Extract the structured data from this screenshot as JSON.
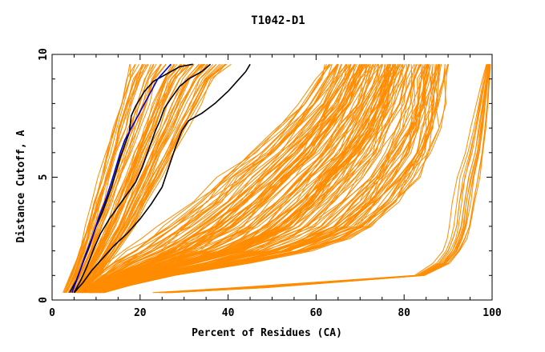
{
  "chart_data": {
    "type": "line",
    "title": "T1042-D1",
    "xlabel": "Percent of Residues (CA)",
    "ylabel": "Distance Cutoff, A",
    "xlim": [
      0,
      100
    ],
    "ylim": [
      0,
      10
    ],
    "x_ticks": [
      "0",
      "20",
      "40",
      "60",
      "80",
      "100"
    ],
    "y_ticks": [
      "0",
      "5",
      "10"
    ],
    "grid": false,
    "legend": "none",
    "colors": {
      "orange": "#ff8c00",
      "black": "#000000",
      "blue": "#0000cd",
      "frame": "#000000"
    },
    "orange_bundles": [
      {
        "name": "steep",
        "count": 65,
        "y": [
          0.3,
          1,
          2,
          3,
          4,
          5,
          6,
          7,
          8,
          9,
          9.6
        ],
        "x_low": [
          2.5,
          4,
          6,
          7.5,
          9,
          10.5,
          12,
          13.5,
          15,
          16.5,
          17.5
        ],
        "x_high": [
          7,
          11,
          15,
          19,
          22,
          25,
          28,
          31,
          34,
          37,
          41
        ]
      },
      {
        "name": "middle",
        "count": 150,
        "y": [
          0.3,
          0.6,
          1,
          1.5,
          2,
          2.5,
          3,
          4,
          5,
          6,
          7,
          8,
          9,
          9.6
        ],
        "x_low": [
          5,
          8,
          10,
          13,
          17,
          21,
          25,
          32,
          38,
          45,
          51,
          56,
          60,
          62
        ],
        "x_high": [
          12,
          18,
          28,
          45,
          60,
          68,
          74,
          80,
          84,
          87,
          88.5,
          89.5,
          90,
          90.5
        ]
      },
      {
        "name": "right",
        "count": 15,
        "y": [
          0.3,
          0.5,
          1,
          1.5,
          2,
          2.5,
          3,
          4,
          5,
          6,
          7,
          8,
          9,
          9.6
        ],
        "x_low": [
          22,
          40,
          82,
          86,
          88,
          89,
          89.5,
          90,
          91,
          93,
          94.5,
          96,
          97.5,
          98.5
        ],
        "x_high": [
          28,
          50,
          85,
          91,
          93.5,
          95,
          96,
          97,
          98,
          98.8,
          99.2,
          99.5,
          99.7,
          99.8
        ]
      }
    ],
    "series": [
      {
        "color": "#000000",
        "x": [
          4,
          5.5,
          7,
          8.5,
          10,
          11.5,
          12.5,
          13.5,
          14.5,
          15.5,
          16.5,
          17.5,
          18,
          19,
          21,
          23,
          25,
          27,
          29,
          32
        ],
        "y": [
          0.3,
          0.8,
          1.5,
          2.2,
          3.0,
          3.6,
          4.1,
          4.6,
          5.2,
          5.8,
          6.3,
          6.8,
          7.5,
          7.9,
          8.5,
          8.9,
          9.1,
          9.3,
          9.5,
          9.6
        ]
      },
      {
        "color": "#000000",
        "x": [
          5,
          6.5,
          8,
          9.5,
          11,
          13,
          15,
          17,
          19,
          20.5,
          21.5,
          22.5,
          23.5,
          24.5,
          25.5,
          27,
          29,
          31,
          34,
          36
        ],
        "y": [
          0.3,
          0.8,
          1.4,
          2.1,
          2.7,
          3.3,
          3.8,
          4.3,
          4.8,
          5.4,
          5.9,
          6.4,
          6.9,
          7.3,
          7.8,
          8.2,
          8.7,
          9.0,
          9.3,
          9.6
        ]
      },
      {
        "color": "#000000",
        "x": [
          5,
          7,
          9,
          11.5,
          14,
          17,
          20,
          22.5,
          25,
          26.5,
          28,
          29.5,
          31,
          34,
          37,
          40,
          42,
          44,
          45
        ],
        "y": [
          0.3,
          0.7,
          1.2,
          1.7,
          2.2,
          2.7,
          3.3,
          3.9,
          4.6,
          5.4,
          6.2,
          6.9,
          7.3,
          7.6,
          8.0,
          8.5,
          8.9,
          9.3,
          9.6
        ]
      },
      {
        "color": "#0000cd",
        "x": [
          4.5,
          6,
          7.5,
          9,
          10.5,
          12,
          13.5,
          14.5,
          15.5,
          16.5,
          18,
          19.5,
          21,
          22.5,
          24,
          25.5,
          27
        ],
        "y": [
          0.3,
          1.0,
          1.8,
          2.5,
          3.3,
          4.0,
          4.8,
          5.4,
          6.0,
          6.5,
          7.0,
          7.5,
          8.0,
          8.5,
          9.0,
          9.3,
          9.6
        ]
      }
    ]
  }
}
